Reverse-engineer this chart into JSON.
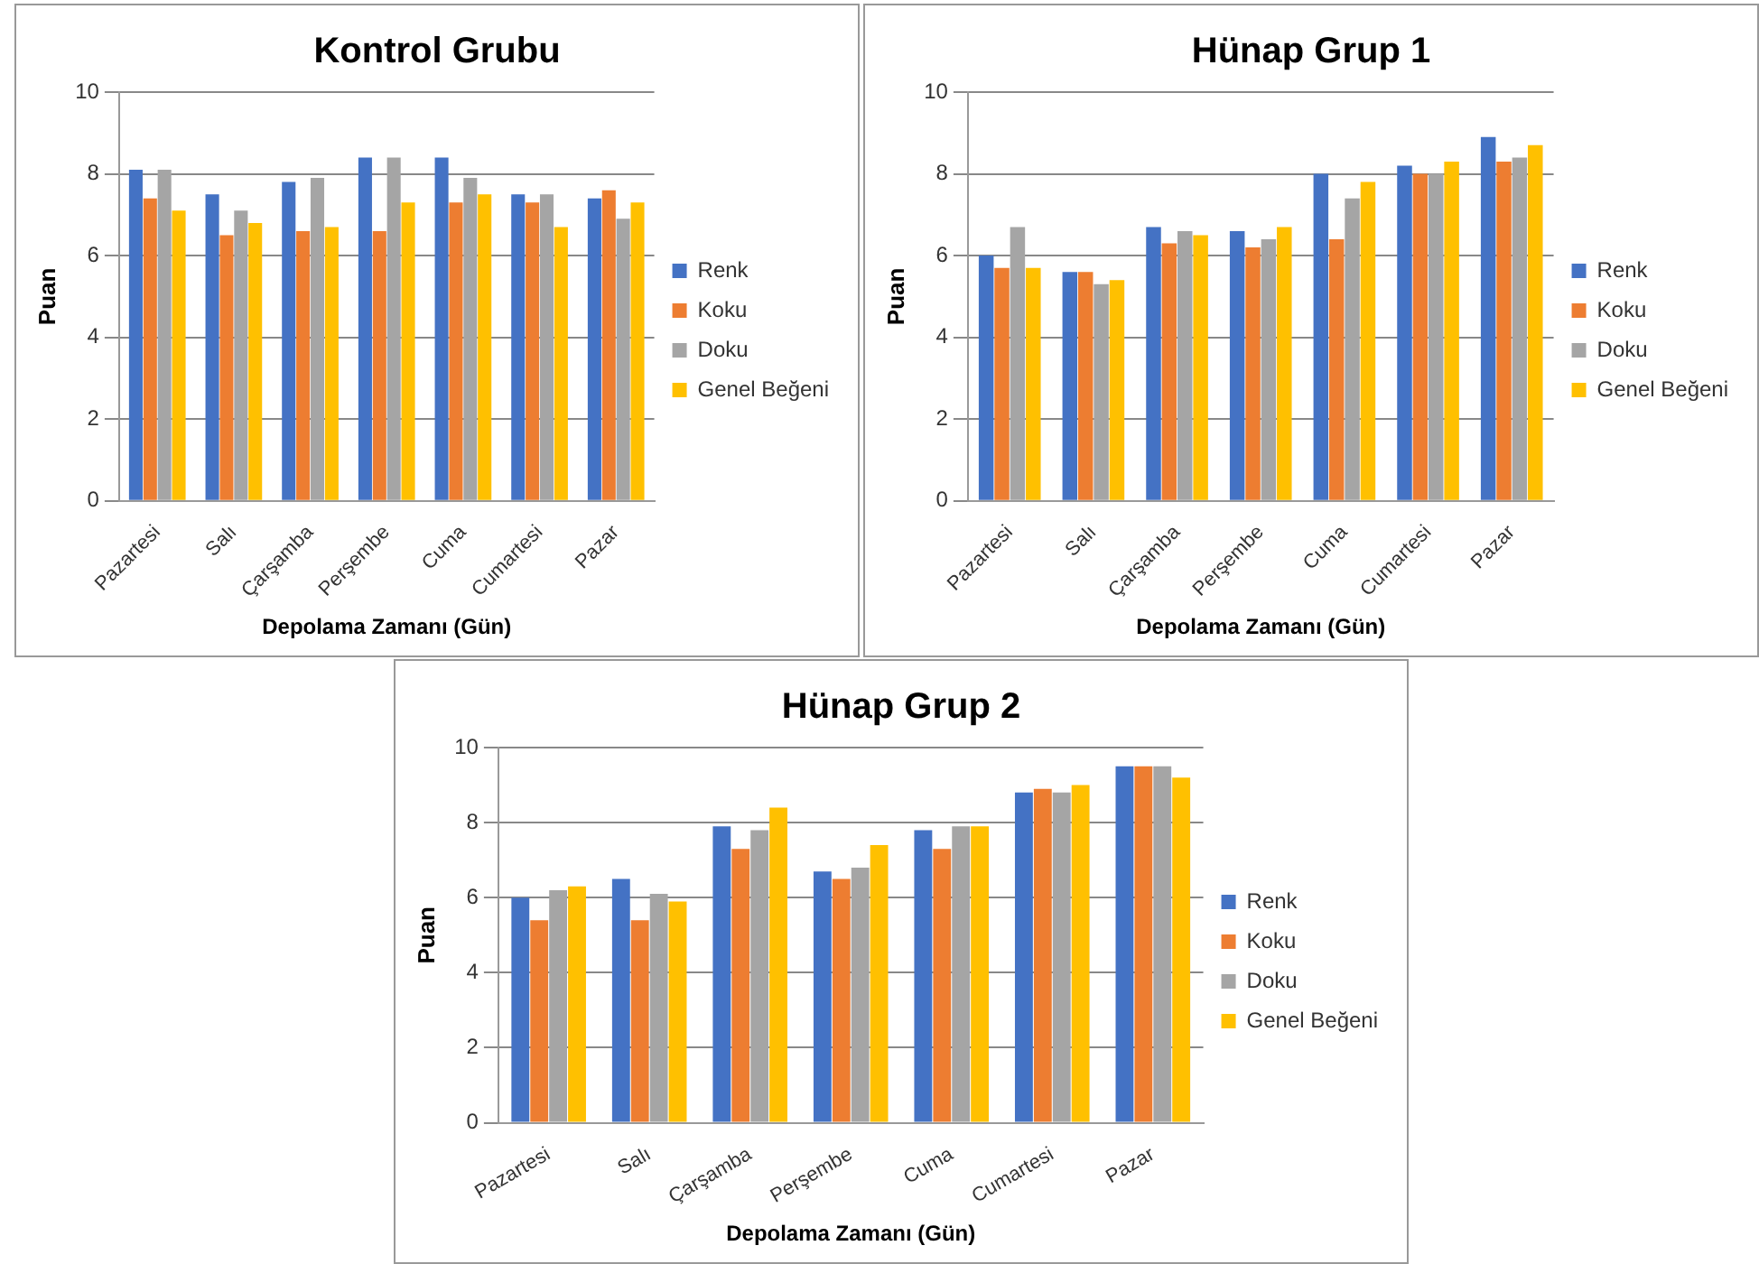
{
  "chart_data": [
    {
      "type": "bar",
      "title": "Kontrol Grubu",
      "xlabel": "Depolama Zamanı (Gün)",
      "ylabel": "Puan",
      "categories": [
        "Pazartesi",
        "Salı",
        "Çarşamba",
        "Perşembe",
        "Cuma",
        "Cumartesi",
        "Pazar"
      ],
      "ylim": [
        0,
        10
      ],
      "yticks": [
        0,
        2,
        4,
        6,
        8,
        10
      ],
      "grid": "y",
      "legend": "right",
      "series": [
        {
          "name": "Renk",
          "color": "#4472c4",
          "values": [
            8.1,
            7.5,
            7.8,
            8.4,
            8.4,
            7.5,
            7.4
          ]
        },
        {
          "name": "Koku",
          "color": "#ed7d31",
          "values": [
            7.4,
            6.5,
            6.6,
            6.6,
            7.3,
            7.3,
            7.6
          ]
        },
        {
          "name": "Doku",
          "color": "#a5a5a5",
          "values": [
            8.1,
            7.1,
            7.9,
            8.4,
            7.9,
            7.5,
            6.9
          ]
        },
        {
          "name": "Genel Beğeni",
          "color": "#ffc000",
          "values": [
            7.1,
            6.8,
            6.7,
            7.3,
            7.5,
            6.7,
            7.3
          ]
        }
      ]
    },
    {
      "type": "bar",
      "title": "Hünap Grup 1",
      "xlabel": "Depolama Zamanı (Gün)",
      "ylabel": "Puan",
      "categories": [
        "Pazartesi",
        "Salı",
        "Çarşamba",
        "Perşembe",
        "Cuma",
        "Cumartesi",
        "Pazar"
      ],
      "ylim": [
        0,
        10
      ],
      "yticks": [
        0,
        2,
        4,
        6,
        8,
        10
      ],
      "grid": "y",
      "legend": "right",
      "series": [
        {
          "name": "Renk",
          "color": "#4472c4",
          "values": [
            6.0,
            5.6,
            6.7,
            6.6,
            8.0,
            8.2,
            8.9
          ]
        },
        {
          "name": "Koku",
          "color": "#ed7d31",
          "values": [
            5.7,
            5.6,
            6.3,
            6.2,
            6.4,
            8.0,
            8.3
          ]
        },
        {
          "name": "Doku",
          "color": "#a5a5a5",
          "values": [
            6.7,
            5.3,
            6.6,
            6.4,
            7.4,
            8.0,
            8.4
          ]
        },
        {
          "name": "Genel Beğeni",
          "color": "#ffc000",
          "values": [
            5.7,
            5.4,
            6.5,
            6.7,
            7.8,
            8.3,
            8.7
          ]
        }
      ]
    },
    {
      "type": "bar",
      "title": "Hünap Grup 2",
      "xlabel": "Depolama Zamanı (Gün)",
      "ylabel": "Puan",
      "categories": [
        "Pazartesi",
        "Salı",
        "Çarşamba",
        "Perşembe",
        "Cuma",
        "Cumartesi",
        "Pazar"
      ],
      "ylim": [
        0,
        10
      ],
      "yticks": [
        0,
        2,
        4,
        6,
        8,
        10
      ],
      "grid": "y",
      "legend": "right",
      "series": [
        {
          "name": "Renk",
          "color": "#4472c4",
          "values": [
            6.0,
            6.5,
            7.9,
            6.7,
            7.8,
            8.8,
            9.5
          ]
        },
        {
          "name": "Koku",
          "color": "#ed7d31",
          "values": [
            5.4,
            5.4,
            7.3,
            6.5,
            7.3,
            8.9,
            9.5
          ]
        },
        {
          "name": "Doku",
          "color": "#a5a5a5",
          "values": [
            6.2,
            6.1,
            7.8,
            6.8,
            7.9,
            8.8,
            9.5
          ]
        },
        {
          "name": "Genel Beğeni",
          "color": "#ffc000",
          "values": [
            6.3,
            5.9,
            8.4,
            7.4,
            7.9,
            9.0,
            9.2
          ]
        }
      ]
    }
  ]
}
